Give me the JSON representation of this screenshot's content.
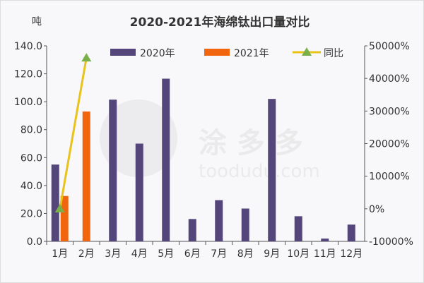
{
  "chart_data": {
    "type": "bar+line",
    "title": "2020-2021年海绵钛出口量对比",
    "ylabel": "吨",
    "categories": [
      "1月",
      "2月",
      "3月",
      "4月",
      "5月",
      "6月",
      "7月",
      "8月",
      "9月",
      "10月",
      "11月",
      "12月"
    ],
    "series": [
      {
        "name": "2020年",
        "type": "bar",
        "axis": "left",
        "color": "#54457a",
        "values": [
          55,
          null,
          101.5,
          70,
          116.5,
          16,
          29.5,
          23.5,
          102,
          18,
          2,
          12
        ]
      },
      {
        "name": "2021年",
        "type": "bar",
        "axis": "left",
        "color": "#f0650e",
        "values": [
          32.5,
          93,
          null,
          null,
          null,
          null,
          null,
          null,
          null,
          null,
          null,
          null
        ]
      },
      {
        "name": "同比",
        "type": "line",
        "axis": "right",
        "color": "#e9c21a",
        "marker_color": "#7ab04a",
        "values": [
          -41,
          46300,
          null,
          null,
          null,
          null,
          null,
          null,
          null,
          null,
          null,
          null
        ]
      }
    ],
    "ylim": [
      0,
      140
    ],
    "yticks": [
      "0.0",
      "20.0",
      "40.0",
      "60.0",
      "80.0",
      "100.0",
      "120.0",
      "140.0"
    ],
    "y2lim": [
      -10000,
      50000
    ],
    "y2ticks": [
      "-10000%",
      "0%",
      "10000%",
      "20000%",
      "30000%",
      "40000%",
      "50000%"
    ],
    "grid": false,
    "legend": "top",
    "watermark": "涂多多 toodudu.com"
  }
}
